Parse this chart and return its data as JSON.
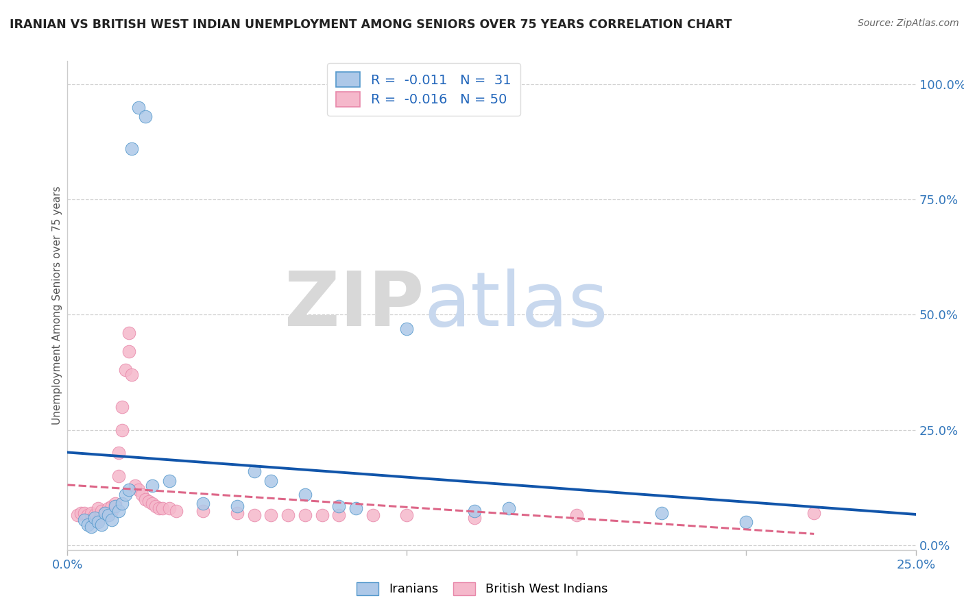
{
  "title": "IRANIAN VS BRITISH WEST INDIAN UNEMPLOYMENT AMONG SENIORS OVER 75 YEARS CORRELATION CHART",
  "source": "Source: ZipAtlas.com",
  "ylabel": "Unemployment Among Seniors over 75 years",
  "xlim": [
    0.0,
    0.25
  ],
  "ylim": [
    -0.01,
    1.05
  ],
  "xticks": [
    0.0,
    0.05,
    0.1,
    0.15,
    0.2,
    0.25
  ],
  "xtick_labels": [
    "0.0%",
    "",
    "",
    "",
    "",
    "25.0%"
  ],
  "yticks": [
    0.0,
    0.25,
    0.5,
    0.75,
    1.0
  ],
  "ytick_labels_right": [
    "0.0%",
    "25.0%",
    "50.0%",
    "75.0%",
    "100.0%"
  ],
  "iranian_color": "#adc8e8",
  "bwi_color": "#f5b8cb",
  "iranian_edge_color": "#5599cc",
  "bwi_edge_color": "#e888aa",
  "iranian_line_color": "#1155aa",
  "bwi_line_color": "#dd6688",
  "background_color": "#ffffff",
  "iranians_x": [
    0.021,
    0.023,
    0.019,
    0.005,
    0.006,
    0.007,
    0.008,
    0.009,
    0.01,
    0.011,
    0.012,
    0.013,
    0.014,
    0.015,
    0.016,
    0.017,
    0.018,
    0.025,
    0.03,
    0.04,
    0.05,
    0.055,
    0.06,
    0.07,
    0.08,
    0.085,
    0.1,
    0.12,
    0.13,
    0.175,
    0.2
  ],
  "iranians_y": [
    0.95,
    0.93,
    0.86,
    0.055,
    0.045,
    0.04,
    0.06,
    0.05,
    0.045,
    0.07,
    0.065,
    0.055,
    0.085,
    0.075,
    0.09,
    0.11,
    0.12,
    0.13,
    0.14,
    0.09,
    0.085,
    0.16,
    0.14,
    0.11,
    0.085,
    0.08,
    0.47,
    0.075,
    0.08,
    0.07,
    0.05
  ],
  "bwi_x": [
    0.003,
    0.004,
    0.005,
    0.006,
    0.007,
    0.007,
    0.008,
    0.008,
    0.009,
    0.009,
    0.01,
    0.01,
    0.011,
    0.012,
    0.012,
    0.013,
    0.013,
    0.014,
    0.015,
    0.015,
    0.016,
    0.016,
    0.017,
    0.018,
    0.018,
    0.019,
    0.02,
    0.021,
    0.022,
    0.023,
    0.024,
    0.025,
    0.026,
    0.027,
    0.028,
    0.03,
    0.032,
    0.04,
    0.05,
    0.055,
    0.06,
    0.065,
    0.07,
    0.075,
    0.08,
    0.09,
    0.1,
    0.12,
    0.15,
    0.22
  ],
  "bwi_y": [
    0.065,
    0.07,
    0.07,
    0.065,
    0.065,
    0.07,
    0.06,
    0.065,
    0.055,
    0.08,
    0.065,
    0.075,
    0.07,
    0.065,
    0.08,
    0.075,
    0.085,
    0.09,
    0.15,
    0.2,
    0.25,
    0.3,
    0.38,
    0.42,
    0.46,
    0.37,
    0.13,
    0.12,
    0.11,
    0.1,
    0.095,
    0.09,
    0.085,
    0.08,
    0.08,
    0.08,
    0.075,
    0.075,
    0.07,
    0.065,
    0.065,
    0.065,
    0.065,
    0.065,
    0.065,
    0.065,
    0.065,
    0.06,
    0.065,
    0.07
  ]
}
